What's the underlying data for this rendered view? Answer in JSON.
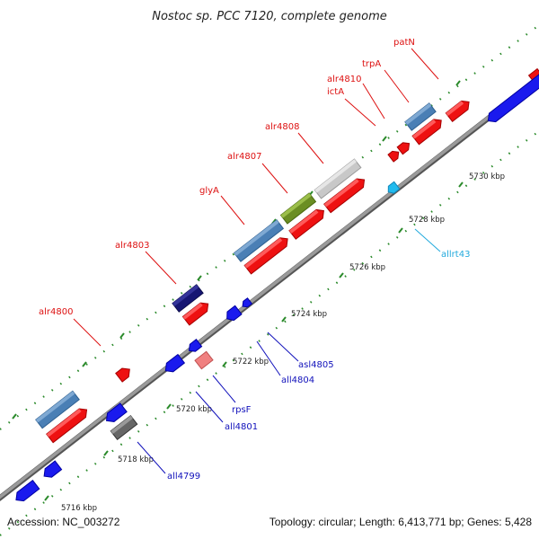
{
  "title": "Nostoc sp. PCC 7120, complete genome",
  "footer": {
    "accession": "Accession: NC_003272",
    "topology": "Topology: circular; Length: 6,413,771 bp; Genes: 5,428"
  },
  "colors": {
    "backbone": "#8a8a8a",
    "tick": "#2a8a2a",
    "label_forward": "#dd1111",
    "label_reverse": "#1111bb",
    "label_rna": "#22aadd"
  },
  "ticks": [
    {
      "label": "5716 kbp"
    },
    {
      "label": "5718 kbp"
    },
    {
      "label": "5720 kbp"
    },
    {
      "label": "5722 kbp"
    },
    {
      "label": "5724 kbp"
    },
    {
      "label": "5726 kbp"
    },
    {
      "label": "5728 kbp"
    },
    {
      "label": "5730 kbp"
    }
  ],
  "gene_labels": [
    {
      "id": "alr4800",
      "text": "alr4800",
      "strand": "forward"
    },
    {
      "id": "alr4803",
      "text": "alr4803",
      "strand": "forward"
    },
    {
      "id": "glyA",
      "text": "glyA",
      "strand": "forward"
    },
    {
      "id": "alr4807",
      "text": "alr4807",
      "strand": "forward"
    },
    {
      "id": "alr4808",
      "text": "alr4808",
      "strand": "forward"
    },
    {
      "id": "ictA",
      "text": "ictA",
      "strand": "forward"
    },
    {
      "id": "alr4810",
      "text": "alr4810",
      "strand": "forward"
    },
    {
      "id": "trpA",
      "text": "trpA",
      "strand": "forward"
    },
    {
      "id": "patN",
      "text": "patN",
      "strand": "forward"
    },
    {
      "id": "all4799",
      "text": "all4799",
      "strand": "reverse"
    },
    {
      "id": "all4801",
      "text": "all4801",
      "strand": "reverse"
    },
    {
      "id": "rpsF",
      "text": "rpsF",
      "strand": "reverse"
    },
    {
      "id": "all4804",
      "text": "all4804",
      "strand": "reverse"
    },
    {
      "id": "asl4805",
      "text": "asl4805",
      "strand": "reverse"
    },
    {
      "id": "allrt43",
      "text": "allrt43",
      "strand": "rna"
    }
  ]
}
